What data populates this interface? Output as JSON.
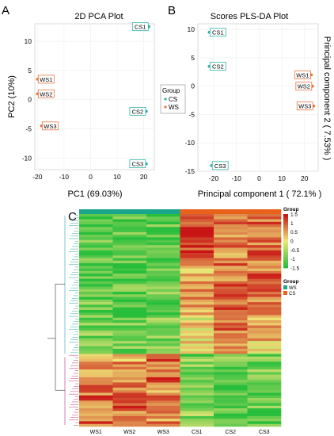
{
  "chart_data": [
    {
      "panel": "A",
      "type": "scatter",
      "title": "2D PCA Plot",
      "xlabel": "PC1 (69.03%)",
      "ylabel": "PC2 (10%)",
      "xlim": [
        -21,
        24
      ],
      "ylim": [
        -12,
        13
      ],
      "xticks": [
        "-20",
        "-10",
        "0",
        "10",
        "20"
      ],
      "yticks": [
        "10",
        "5",
        "0",
        "-5",
        "-10"
      ],
      "grid": true,
      "legend": "none",
      "series": [
        {
          "name": "CS",
          "color": "#2bb3a6",
          "points": [
            {
              "label": "CS1",
              "x": 22,
              "y": 12.5
            },
            {
              "label": "CS2",
              "x": 21,
              "y": -2
            },
            {
              "label": "CS3",
              "x": 21,
              "y": -11
            }
          ]
        },
        {
          "name": "WS",
          "color": "#e8743b",
          "points": [
            {
              "label": "WS1",
              "x": -20,
              "y": 3.5
            },
            {
              "label": "WS2",
              "x": -20,
              "y": 1
            },
            {
              "label": "WS3",
              "x": -18.5,
              "y": -4.5
            }
          ]
        }
      ]
    },
    {
      "panel": "B",
      "type": "scatter",
      "title": "Scores PLS-DA Plot",
      "xlabel": "Principal component 1 ( 72.1% )",
      "ylabel": "Principal component 2 ( 7.53% )",
      "xlim": [
        -27,
        26
      ],
      "ylim": [
        -15,
        11
      ],
      "xticks": [
        "-20",
        "-10",
        "0",
        "10",
        "20"
      ],
      "yticks": [
        "10",
        "5",
        "0",
        "-5",
        "-10",
        "-15"
      ],
      "grid": true,
      "legend": {
        "title": "Group",
        "items": [
          "CS",
          "WS"
        ],
        "placement": "left"
      },
      "series": [
        {
          "name": "CS",
          "color": "#2bb3a6",
          "points": [
            {
              "label": "CS1",
              "x": -22,
              "y": 9.5
            },
            {
              "label": "CS2",
              "x": -22,
              "y": 3.5
            },
            {
              "label": "CS3",
              "x": -21,
              "y": -14
            }
          ]
        },
        {
          "name": "WS",
          "color": "#e8743b",
          "points": [
            {
              "label": "WS1",
              "x": 23,
              "y": 2
            },
            {
              "label": "WS2",
              "x": 23.5,
              "y": 0
            },
            {
              "label": "WS3",
              "x": 24,
              "y": -3.5
            }
          ]
        }
      ]
    },
    {
      "panel": "C",
      "type": "heatmap",
      "columns": [
        "WS1",
        "WS2",
        "WS3",
        "CS1",
        "CS2",
        "CS3"
      ],
      "group_bar": [
        "WS",
        "WS",
        "WS",
        "CS",
        "CS",
        "CS"
      ],
      "group_colors": {
        "WS": "#1aa68a",
        "CS": "#e8621c"
      },
      "colorbar": {
        "title": "Group",
        "ticks": [
          "1.5",
          "1",
          "0.5",
          "0",
          "-0.5",
          "-1",
          "-1.5"
        ],
        "range": [
          -1.5,
          1.5
        ]
      },
      "group_legend": {
        "title": "Group",
        "items": [
          "WS",
          "CS"
        ]
      },
      "row_blocks": [
        {
          "rows": 18,
          "values": [
            -1.1,
            -1.1,
            -1.1,
            1.3,
            0.7,
            0.8
          ]
        },
        {
          "rows": 22,
          "values": [
            -1.0,
            -1.1,
            -1.0,
            0.4,
            0.9,
            0.9
          ]
        },
        {
          "rows": 14,
          "values": [
            -0.9,
            -1.0,
            -0.8,
            0.1,
            0.8,
            0.3
          ]
        },
        {
          "rows": 12,
          "values": [
            0.7,
            0.6,
            1.0,
            -0.9,
            -1.0,
            -0.9
          ]
        },
        {
          "rows": 16,
          "values": [
            0.9,
            0.9,
            0.7,
            -0.8,
            -1.1,
            -1.0
          ]
        }
      ]
    }
  ],
  "panel_labels": {
    "a": "A",
    "b": "B",
    "c": "C"
  }
}
